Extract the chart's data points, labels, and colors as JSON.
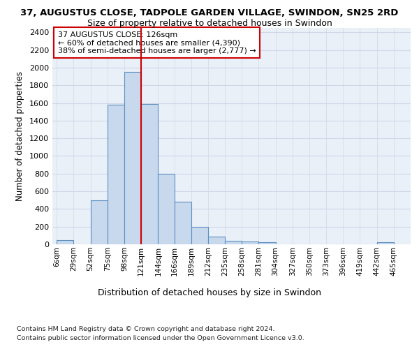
{
  "title_line1": "37, AUGUSTUS CLOSE, TADPOLE GARDEN VILLAGE, SWINDON, SN25 2RD",
  "title_line2": "Size of property relative to detached houses in Swindon",
  "xlabel": "Distribution of detached houses by size in Swindon",
  "ylabel": "Number of detached properties",
  "annotation_line1": "37 AUGUSTUS CLOSE: 126sqm",
  "annotation_line2": "← 60% of detached houses are smaller (4,390)",
  "annotation_line3": "38% of semi-detached houses are larger (2,777) →",
  "bar_left_edges": [
    6,
    29,
    52,
    75,
    98,
    121,
    144,
    166,
    189,
    212,
    235,
    258,
    281,
    304,
    327,
    350,
    373,
    396,
    419,
    442
  ],
  "bar_widths": [
    23,
    23,
    23,
    23,
    23,
    23,
    22,
    23,
    23,
    23,
    23,
    23,
    23,
    23,
    23,
    23,
    23,
    23,
    23,
    23
  ],
  "bar_heights": [
    50,
    0,
    500,
    1580,
    1950,
    1590,
    800,
    480,
    200,
    90,
    40,
    30,
    20,
    0,
    0,
    0,
    0,
    0,
    0,
    20
  ],
  "bar_face_color": "#c9d9ed",
  "bar_edge_color": "#5a8fc0",
  "vline_x": 121,
  "vline_color": "#cc0000",
  "ylim": [
    0,
    2450
  ],
  "yticks": [
    0,
    200,
    400,
    600,
    800,
    1000,
    1200,
    1400,
    1600,
    1800,
    2000,
    2200,
    2400
  ],
  "x_tick_labels": [
    "6sqm",
    "29sqm",
    "52sqm",
    "75sqm",
    "98sqm",
    "121sqm",
    "144sqm",
    "166sqm",
    "189sqm",
    "212sqm",
    "235sqm",
    "258sqm",
    "281sqm",
    "304sqm",
    "327sqm",
    "350sqm",
    "373sqm",
    "396sqm",
    "419sqm",
    "442sqm",
    "465sqm"
  ],
  "x_tick_positions": [
    6,
    29,
    52,
    75,
    98,
    121,
    144,
    166,
    189,
    212,
    235,
    258,
    281,
    304,
    327,
    350,
    373,
    396,
    419,
    442,
    465
  ],
  "grid_color": "#d0d8e8",
  "bg_color": "#eaf0f8",
  "footnote1": "Contains HM Land Registry data © Crown copyright and database right 2024.",
  "footnote2": "Contains public sector information licensed under the Open Government Licence v3.0.",
  "annotation_box_color": "#ffffff",
  "annotation_border_color": "#cc0000",
  "xlim": [
    0,
    488
  ]
}
